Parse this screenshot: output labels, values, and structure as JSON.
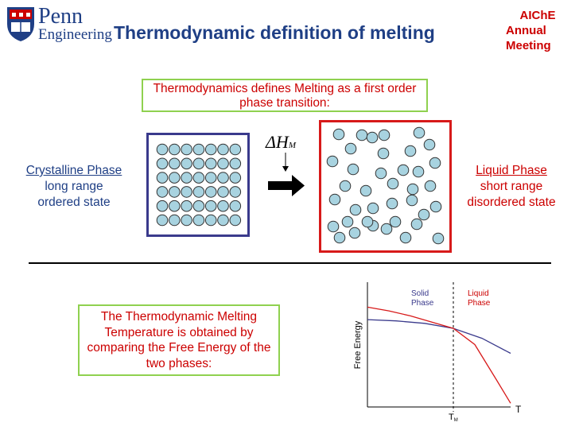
{
  "header": {
    "logo_line1": "Penn",
    "logo_line2": "Engineering",
    "title": "Thermodynamic definition of melting",
    "conference_lines": [
      "AIChE",
      "Annual",
      "Meeting"
    ]
  },
  "top_note": "Thermodynamics defines Melting as a first order phase transition:",
  "crystalline": {
    "title": "Crystalline Phase",
    "line1": "long range",
    "line2": "ordered state"
  },
  "liquid": {
    "title": "Liquid Phase",
    "line1": "short range",
    "line2": "disordered state"
  },
  "enthalpy_label": {
    "delta": "Δ",
    "symbol": "H",
    "subscript": "M"
  },
  "bottom_note": "The Thermodynamic Melting Temperature is obtained by comparing the Free Energy of the two phases:",
  "colors": {
    "navy": "#1f3f85",
    "red": "#cc0000",
    "green_border": "#8fd14f",
    "particle_fill": "#a8d3e0",
    "solid_curve": "#3a3a8c",
    "liquid_curve": "#d71a1a"
  },
  "chart_data": {
    "type": "line",
    "xlabel": "T",
    "ylabel": "Free Energy",
    "x_marker_label": "T",
    "x_marker_subscript": "M",
    "region_labels": [
      {
        "line1": "Solid",
        "line2": "Phase"
      },
      {
        "line1": "Liquid",
        "line2": "Phase"
      }
    ],
    "series": [
      {
        "name": "Solid Phase",
        "x": [
          0,
          20,
          40,
          60,
          80,
          100
        ],
        "y": [
          70,
          69,
          67,
          63,
          55,
          43
        ]
      },
      {
        "name": "Liquid Phase",
        "x": [
          0,
          15,
          30,
          45,
          60,
          75,
          90,
          100
        ],
        "y": [
          80,
          77,
          73,
          68,
          63,
          50,
          22,
          3
        ]
      }
    ],
    "tm_x": 60,
    "xlim": [
      0,
      100
    ],
    "ylim": [
      0,
      100
    ],
    "grid": false
  }
}
